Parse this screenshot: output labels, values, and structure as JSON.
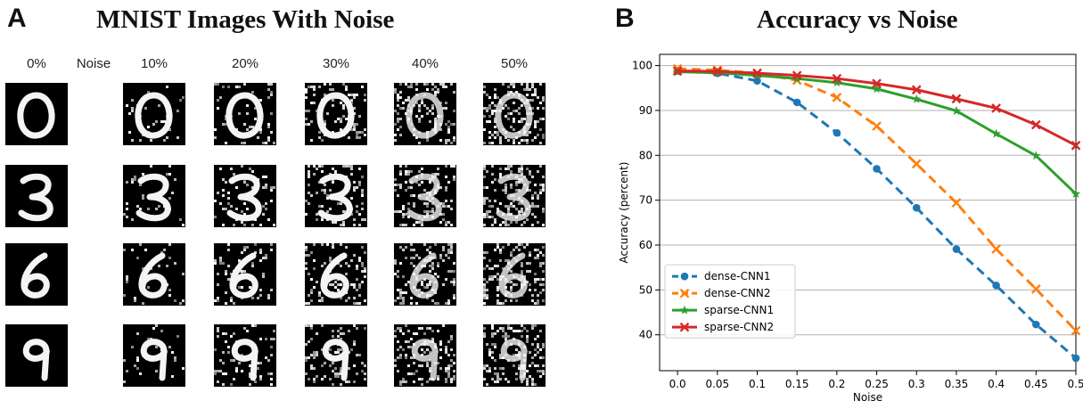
{
  "panel_a": {
    "letter": "A",
    "title": "MNIST Images With Noise",
    "columns": [
      "0%",
      "Noise",
      "10%",
      "20%",
      "30%",
      "40%",
      "50%"
    ],
    "digits": [
      "0",
      "3",
      "6",
      "9"
    ],
    "noise_levels": [
      0,
      0.1,
      0.2,
      0.3,
      0.4,
      0.5
    ]
  },
  "panel_b": {
    "letter": "B",
    "title": "Accuracy vs Noise"
  },
  "chart_data": {
    "type": "line",
    "title": "Accuracy vs Noise",
    "xlabel": "Noise",
    "ylabel": "Accuracy (percent)",
    "x": [
      0.0,
      0.05,
      0.1,
      0.15,
      0.2,
      0.25,
      0.3,
      0.35,
      0.4,
      0.45,
      0.5
    ],
    "x_tick_labels": [
      "0.0",
      "0.05",
      "0.1",
      "0.15",
      "0.2",
      "0.25",
      "0.3",
      "0.35",
      "0.4",
      "0.45",
      "0.5"
    ],
    "y_ticks": [
      40,
      50,
      60,
      70,
      80,
      90,
      100
    ],
    "ylim": [
      32,
      102.5
    ],
    "grid": "horizontal",
    "legend": "lower-left",
    "series": [
      {
        "name": "dense-CNN1",
        "color": "#1f77b4",
        "marker": "circle",
        "dashed": true,
        "values": [
          98.8,
          98.3,
          96.6,
          91.8,
          85.0,
          77.0,
          68.3,
          59.1,
          51.0,
          42.3,
          34.8
        ]
      },
      {
        "name": "dense-CNN2",
        "color": "#ff7f0e",
        "marker": "x",
        "dashed": true,
        "values": [
          99.3,
          99.0,
          98.3,
          96.7,
          92.9,
          86.5,
          78.1,
          69.4,
          59.1,
          50.2,
          40.9
        ]
      },
      {
        "name": "sparse-CNN1",
        "color": "#2ca02c",
        "marker": "star",
        "dashed": false,
        "values": [
          98.6,
          98.4,
          97.8,
          97.1,
          96.2,
          94.8,
          92.5,
          89.9,
          84.8,
          79.9,
          71.4
        ]
      },
      {
        "name": "sparse-CNN2",
        "color": "#d62728",
        "marker": "x",
        "dashed": false,
        "values": [
          98.8,
          98.7,
          98.3,
          97.8,
          97.1,
          96.0,
          94.6,
          92.6,
          90.5,
          86.8,
          82.2
        ]
      }
    ]
  }
}
